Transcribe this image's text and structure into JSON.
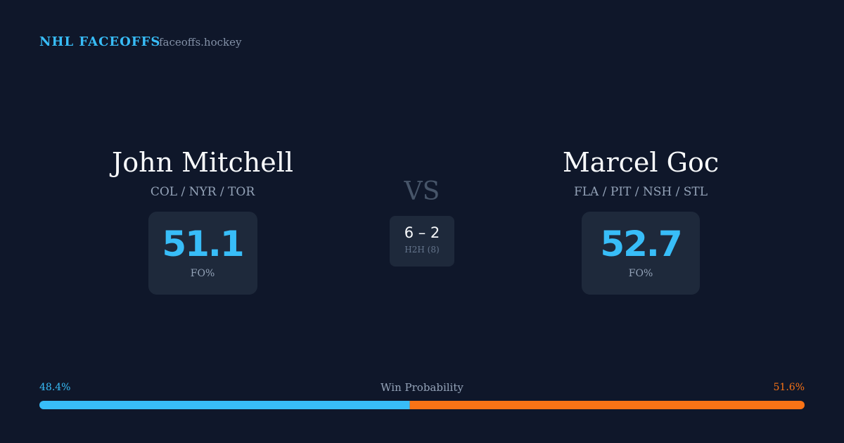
{
  "header": {
    "brand": "NHL FACEOFFS",
    "site": "faceoffs.hockey"
  },
  "players": [
    {
      "name": "John Mitchell",
      "teams": "COL / NYR / TOR",
      "stat": "51.1",
      "stat_label": "FO%"
    },
    {
      "name": "Marcel Goc",
      "teams": "FLA / PIT / NSH / STL",
      "stat": "52.7",
      "stat_label": "FO%"
    }
  ],
  "versus": "VS",
  "head_to_head": {
    "score": "6 – 2",
    "label": "H2H (8)"
  },
  "win_probability": {
    "title": "Win Probability",
    "left": {
      "value": 48.4,
      "label": "48.4%",
      "color": "#38bdf8"
    },
    "right": {
      "value": 51.6,
      "label": "51.6%",
      "color": "#f97316"
    }
  }
}
